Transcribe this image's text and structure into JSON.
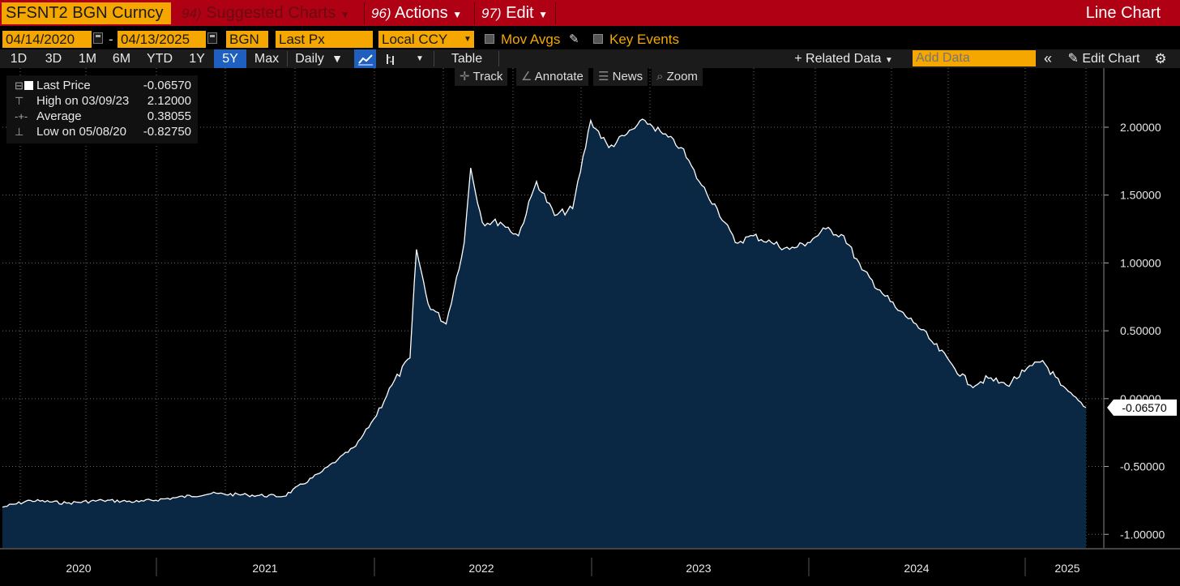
{
  "header": {
    "ticker": "SFSNT2 BGN Curncy",
    "suggested_num": "94)",
    "suggested_label": "Suggested Charts",
    "actions_num": "96)",
    "actions_label": "Actions",
    "edit_num": "97)",
    "edit_label": "Edit",
    "chart_type": "Line Chart",
    "colors": {
      "bar": "#b00014",
      "accent": "#f5a700"
    }
  },
  "controls": {
    "start_date": "04/14/2020",
    "dash": "-",
    "end_date": "04/13/2025",
    "source": "BGN",
    "field": "Last Px",
    "currency": "Local CCY",
    "mov_avgs": "Mov Avgs",
    "key_events": "Key Events"
  },
  "periods": [
    "1D",
    "3D",
    "1M",
    "6M",
    "YTD",
    "1Y",
    "5Y",
    "Max"
  ],
  "active_period": "5Y",
  "frequency": "Daily",
  "table_label": "Table",
  "related_data": "Related Data",
  "add_data_placeholder": "Add Data",
  "edit_chart": "Edit Chart",
  "tools": [
    "Track",
    "Annotate",
    "News",
    "Zoom"
  ],
  "legend": {
    "last": {
      "label": "Last Price",
      "value": "-0.06570"
    },
    "high": {
      "label": "High on 03/09/23",
      "value": "2.12000"
    },
    "avg": {
      "label": "Average",
      "value": "0.38055"
    },
    "low": {
      "label": "Low on 05/08/20",
      "value": "-0.82750"
    }
  },
  "last_value_tag": "-0.06570",
  "chart_data": {
    "type": "area",
    "title": "",
    "xlabel": "",
    "ylabel": "",
    "ylim": [
      -1.1,
      2.4
    ],
    "y_ticks": [
      "2.00000",
      "1.50000",
      "1.00000",
      "0.50000",
      "0.00000",
      "-0.50000",
      "-1.00000"
    ],
    "x_year_labels": [
      "2020",
      "2021",
      "2022",
      "2023",
      "2024",
      "2025"
    ],
    "grid": true,
    "colors": {
      "line": "#ffffff",
      "fill": "#0a2744"
    },
    "x": [
      "2020-04",
      "2020-06",
      "2020-08",
      "2020-10",
      "2020-12",
      "2021-02",
      "2021-04",
      "2021-06",
      "2021-08",
      "2021-10",
      "2021-11",
      "2021-12",
      "2022-01",
      "2022-02",
      "2022-03",
      "2022-03",
      "2022-04",
      "2022-05",
      "2022-06",
      "2022-06",
      "2022-07",
      "2022-08",
      "2022-09",
      "2022-10",
      "2022-11",
      "2022-12",
      "2023-01",
      "2023-02",
      "2023-03",
      "2023-04",
      "2023-05",
      "2023-06",
      "2023-07",
      "2023-08",
      "2023-09",
      "2023-10",
      "2023-11",
      "2023-12",
      "2024-01",
      "2024-02",
      "2024-03",
      "2024-04",
      "2024-05",
      "2024-06",
      "2024-07",
      "2024-08",
      "2024-09",
      "2024-10",
      "2024-11",
      "2024-12",
      "2025-01",
      "2025-02",
      "2025-03",
      "2025-04"
    ],
    "values": [
      -0.8,
      -0.75,
      -0.77,
      -0.75,
      -0.76,
      -0.73,
      -0.7,
      -0.71,
      -0.72,
      -0.55,
      -0.45,
      -0.35,
      -0.15,
      0.1,
      0.3,
      1.1,
      0.7,
      0.55,
      1.15,
      1.7,
      1.3,
      1.3,
      1.2,
      1.6,
      1.35,
      1.4,
      2.05,
      1.85,
      1.95,
      2.05,
      1.95,
      1.85,
      1.6,
      1.4,
      1.15,
      1.2,
      1.15,
      1.1,
      1.15,
      1.25,
      1.2,
      0.95,
      0.8,
      0.65,
      0.55,
      0.4,
      0.25,
      0.1,
      0.15,
      0.1,
      0.2,
      0.28,
      0.1,
      -0.0657
    ]
  }
}
